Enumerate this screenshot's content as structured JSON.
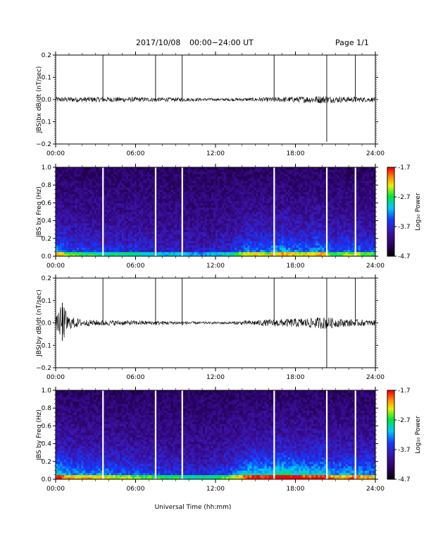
{
  "header": {
    "date": "2017/10/08",
    "time_range": "00:00−24:00 UT",
    "page": "Page 1/1"
  },
  "chart_data": [
    {
      "type": "line",
      "ylabel": "JBS bx dB/dt (nT/sec)",
      "ylim": [
        -0.2,
        0.2
      ],
      "y_ticks": [
        "0.2",
        "0.1",
        "0.0",
        "−0.1",
        "−0.2"
      ],
      "x_ticks": [
        "00:00",
        "06:00",
        "12:00",
        "18:00",
        "24:00"
      ],
      "xlim_hours": [
        0,
        24
      ],
      "baseline_amplitude_estimate": [
        [
          0,
          0.012
        ],
        [
          1,
          0.012
        ],
        [
          3.5,
          0.012
        ],
        [
          7,
          0.01
        ],
        [
          10,
          0.008
        ],
        [
          12,
          0.006
        ],
        [
          14,
          0.007
        ],
        [
          16,
          0.01
        ],
        [
          18,
          0.013
        ],
        [
          20,
          0.018
        ],
        [
          21,
          0.014
        ],
        [
          22.5,
          0.012
        ],
        [
          24,
          0.01
        ]
      ],
      "spikes": [
        {
          "hour": 3.55,
          "min": -0.01,
          "max": 0.2
        },
        {
          "hour": 7.5,
          "min": -0.01,
          "max": 0.2
        },
        {
          "hour": 9.5,
          "min": -0.01,
          "max": 0.2
        },
        {
          "hour": 16.4,
          "min": -0.01,
          "max": 0.2
        },
        {
          "hour": 20.35,
          "min": -0.19,
          "max": 0.2
        },
        {
          "hour": 22.5,
          "min": -0.01,
          "max": 0.2
        }
      ]
    },
    {
      "type": "heatmap",
      "ylabel": "JBS bx Freq (Hz)",
      "ylim": [
        0.0,
        1.0
      ],
      "y_ticks": [
        "1.0",
        "0.8",
        "0.6",
        "0.4",
        "0.2",
        "0.0"
      ],
      "x_ticks": [
        "00:00",
        "06:00",
        "12:00",
        "18:00",
        "24:00"
      ],
      "colorbar": {
        "label": "Log₁₀ Power",
        "ticks": [
          "-1.7",
          "-2.7",
          "-3.7",
          "-4.7"
        ],
        "min": -4.7,
        "max": -1.7
      },
      "gaps_hours": [
        3.55,
        7.5,
        9.5,
        16.4,
        20.35,
        22.5
      ],
      "activity_profile": [
        [
          0,
          0.55
        ],
        [
          1,
          0.4
        ],
        [
          3,
          0.3
        ],
        [
          6,
          0.25
        ],
        [
          9,
          0.2
        ],
        [
          11,
          0.15
        ],
        [
          13,
          0.25
        ],
        [
          14.5,
          0.5
        ],
        [
          16,
          0.45
        ],
        [
          17,
          0.55
        ],
        [
          19,
          0.45
        ],
        [
          20,
          0.55
        ],
        [
          21,
          0.35
        ],
        [
          22,
          0.45
        ],
        [
          24,
          0.35
        ]
      ]
    },
    {
      "type": "line",
      "ylabel": "JBS by dB/dt (nT/sec)",
      "ylim": [
        -0.2,
        0.2
      ],
      "y_ticks": [
        "0.2",
        "0.1",
        "0.0",
        "−0.1",
        "−0.2"
      ],
      "x_ticks": [
        "00:00",
        "06:00",
        "12:00",
        "18:00",
        "24:00"
      ],
      "xlim_hours": [
        0,
        24
      ],
      "baseline_amplitude_estimate": [
        [
          0,
          0.02
        ],
        [
          0.5,
          0.09
        ],
        [
          1,
          0.03
        ],
        [
          2,
          0.015
        ],
        [
          4,
          0.012
        ],
        [
          6,
          0.01
        ],
        [
          9,
          0.008
        ],
        [
          11.5,
          0.005
        ],
        [
          13,
          0.006
        ],
        [
          15,
          0.012
        ],
        [
          17,
          0.018
        ],
        [
          19,
          0.022
        ],
        [
          20.3,
          0.028
        ],
        [
          21,
          0.02
        ],
        [
          22.5,
          0.015
        ],
        [
          24,
          0.012
        ]
      ],
      "spikes": [
        {
          "hour": 0.5,
          "min": -0.08,
          "max": 0.09
        },
        {
          "hour": 3.55,
          "min": -0.01,
          "max": 0.2
        },
        {
          "hour": 7.5,
          "min": -0.01,
          "max": 0.2
        },
        {
          "hour": 9.5,
          "min": -0.01,
          "max": 0.2
        },
        {
          "hour": 16.4,
          "min": -0.01,
          "max": 0.2
        },
        {
          "hour": 20.35,
          "min": -0.2,
          "max": 0.2
        },
        {
          "hour": 22.5,
          "min": -0.01,
          "max": 0.2
        }
      ]
    },
    {
      "type": "heatmap",
      "ylabel": "JBS by Freq (Hz)",
      "ylim": [
        0.0,
        1.0
      ],
      "y_ticks": [
        "1.0",
        "0.8",
        "0.6",
        "0.4",
        "0.2",
        "0.0"
      ],
      "x_ticks": [
        "00:00",
        "06:00",
        "12:00",
        "18:00",
        "24:00"
      ],
      "colorbar": {
        "label": "Log₁₀ Power",
        "ticks": [
          "-1.7",
          "-2.7",
          "-3.7",
          "-4.7"
        ],
        "min": -4.7,
        "max": -1.7
      },
      "gaps_hours": [
        3.55,
        7.5,
        9.5,
        16.4,
        20.35,
        22.5
      ],
      "activity_profile": [
        [
          0,
          0.75
        ],
        [
          1,
          0.55
        ],
        [
          3,
          0.5
        ],
        [
          6,
          0.4
        ],
        [
          9,
          0.3
        ],
        [
          11,
          0.25
        ],
        [
          13,
          0.4
        ],
        [
          14.5,
          0.7
        ],
        [
          16,
          0.65
        ],
        [
          17,
          0.8
        ],
        [
          19,
          0.65
        ],
        [
          20,
          0.75
        ],
        [
          21,
          0.5
        ],
        [
          22,
          0.6
        ],
        [
          24,
          0.5
        ]
      ]
    }
  ],
  "xaxis_label": "Universal Time (hh:mm)"
}
